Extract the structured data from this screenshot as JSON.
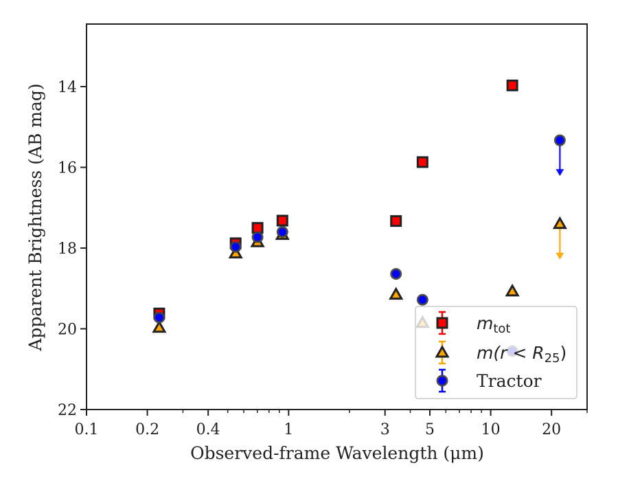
{
  "chart_data": {
    "type": "scatter",
    "xlabel": "Observed-frame Wavelength (μm)",
    "ylabel": "Apparent Brightness (AB mag)",
    "xscale": "log",
    "xlim": [
      0.1,
      30
    ],
    "ylim": [
      22.0,
      12.45
    ],
    "y_inverted": true,
    "xticks": [
      {
        "value": 0.1,
        "label": "0.1"
      },
      {
        "value": 0.2,
        "label": "0.2"
      },
      {
        "value": 0.4,
        "label": "0.4"
      },
      {
        "value": 1,
        "label": "1"
      },
      {
        "value": 3,
        "label": "3"
      },
      {
        "value": 5,
        "label": "5"
      },
      {
        "value": 10,
        "label": "10"
      },
      {
        "value": 20,
        "label": "20"
      }
    ],
    "yticks": [
      {
        "value": 14,
        "label": "14"
      },
      {
        "value": 16,
        "label": "16"
      },
      {
        "value": 18,
        "label": "18"
      },
      {
        "value": 20,
        "label": "20"
      },
      {
        "value": 22,
        "label": "22"
      }
    ],
    "grid": false,
    "legend_position": "lower right",
    "series": [
      {
        "name": "m_tot",
        "legend_label": {
          "main": "m",
          "sub": "tot"
        },
        "marker": "square",
        "color": "#ff0000",
        "edge_color": "#222222",
        "points": [
          {
            "x": 0.229,
            "y": 19.62
          },
          {
            "x": 0.547,
            "y": 17.88
          },
          {
            "x": 0.702,
            "y": 17.5
          },
          {
            "x": 0.932,
            "y": 17.32
          },
          {
            "x": 3.4,
            "y": 17.33
          },
          {
            "x": 4.6,
            "y": 15.87
          },
          {
            "x": 12.8,
            "y": 13.97
          }
        ],
        "upper_limits": []
      },
      {
        "name": "m(r < R25)",
        "legend_label": {
          "main": "m(r < R",
          "sub": "25",
          "tail": ")"
        },
        "marker": "triangle",
        "color": "#ffa500",
        "edge_color": "#222222",
        "points": [
          {
            "x": 0.229,
            "y": 19.97
          },
          {
            "x": 0.547,
            "y": 18.13
          },
          {
            "x": 0.702,
            "y": 17.85
          },
          {
            "x": 0.932,
            "y": 17.67
          },
          {
            "x": 3.4,
            "y": 19.15
          },
          {
            "x": 4.6,
            "y": 19.85
          },
          {
            "x": 12.8,
            "y": 19.07
          }
        ],
        "upper_limits": [
          {
            "x": 22.0,
            "y": 17.4
          }
        ]
      },
      {
        "name": "Tractor",
        "marker": "circle",
        "color": "#0000ff",
        "edge_color": "#444444",
        "points": [
          {
            "x": 0.229,
            "y": 19.72
          },
          {
            "x": 0.547,
            "y": 17.97
          },
          {
            "x": 0.702,
            "y": 17.73
          },
          {
            "x": 0.932,
            "y": 17.6
          },
          {
            "x": 3.4,
            "y": 18.64
          },
          {
            "x": 4.6,
            "y": 19.28
          },
          {
            "x": 12.8,
            "y": 20.55
          }
        ],
        "upper_limits": [
          {
            "x": 22.0,
            "y": 15.33
          }
        ]
      }
    ]
  }
}
